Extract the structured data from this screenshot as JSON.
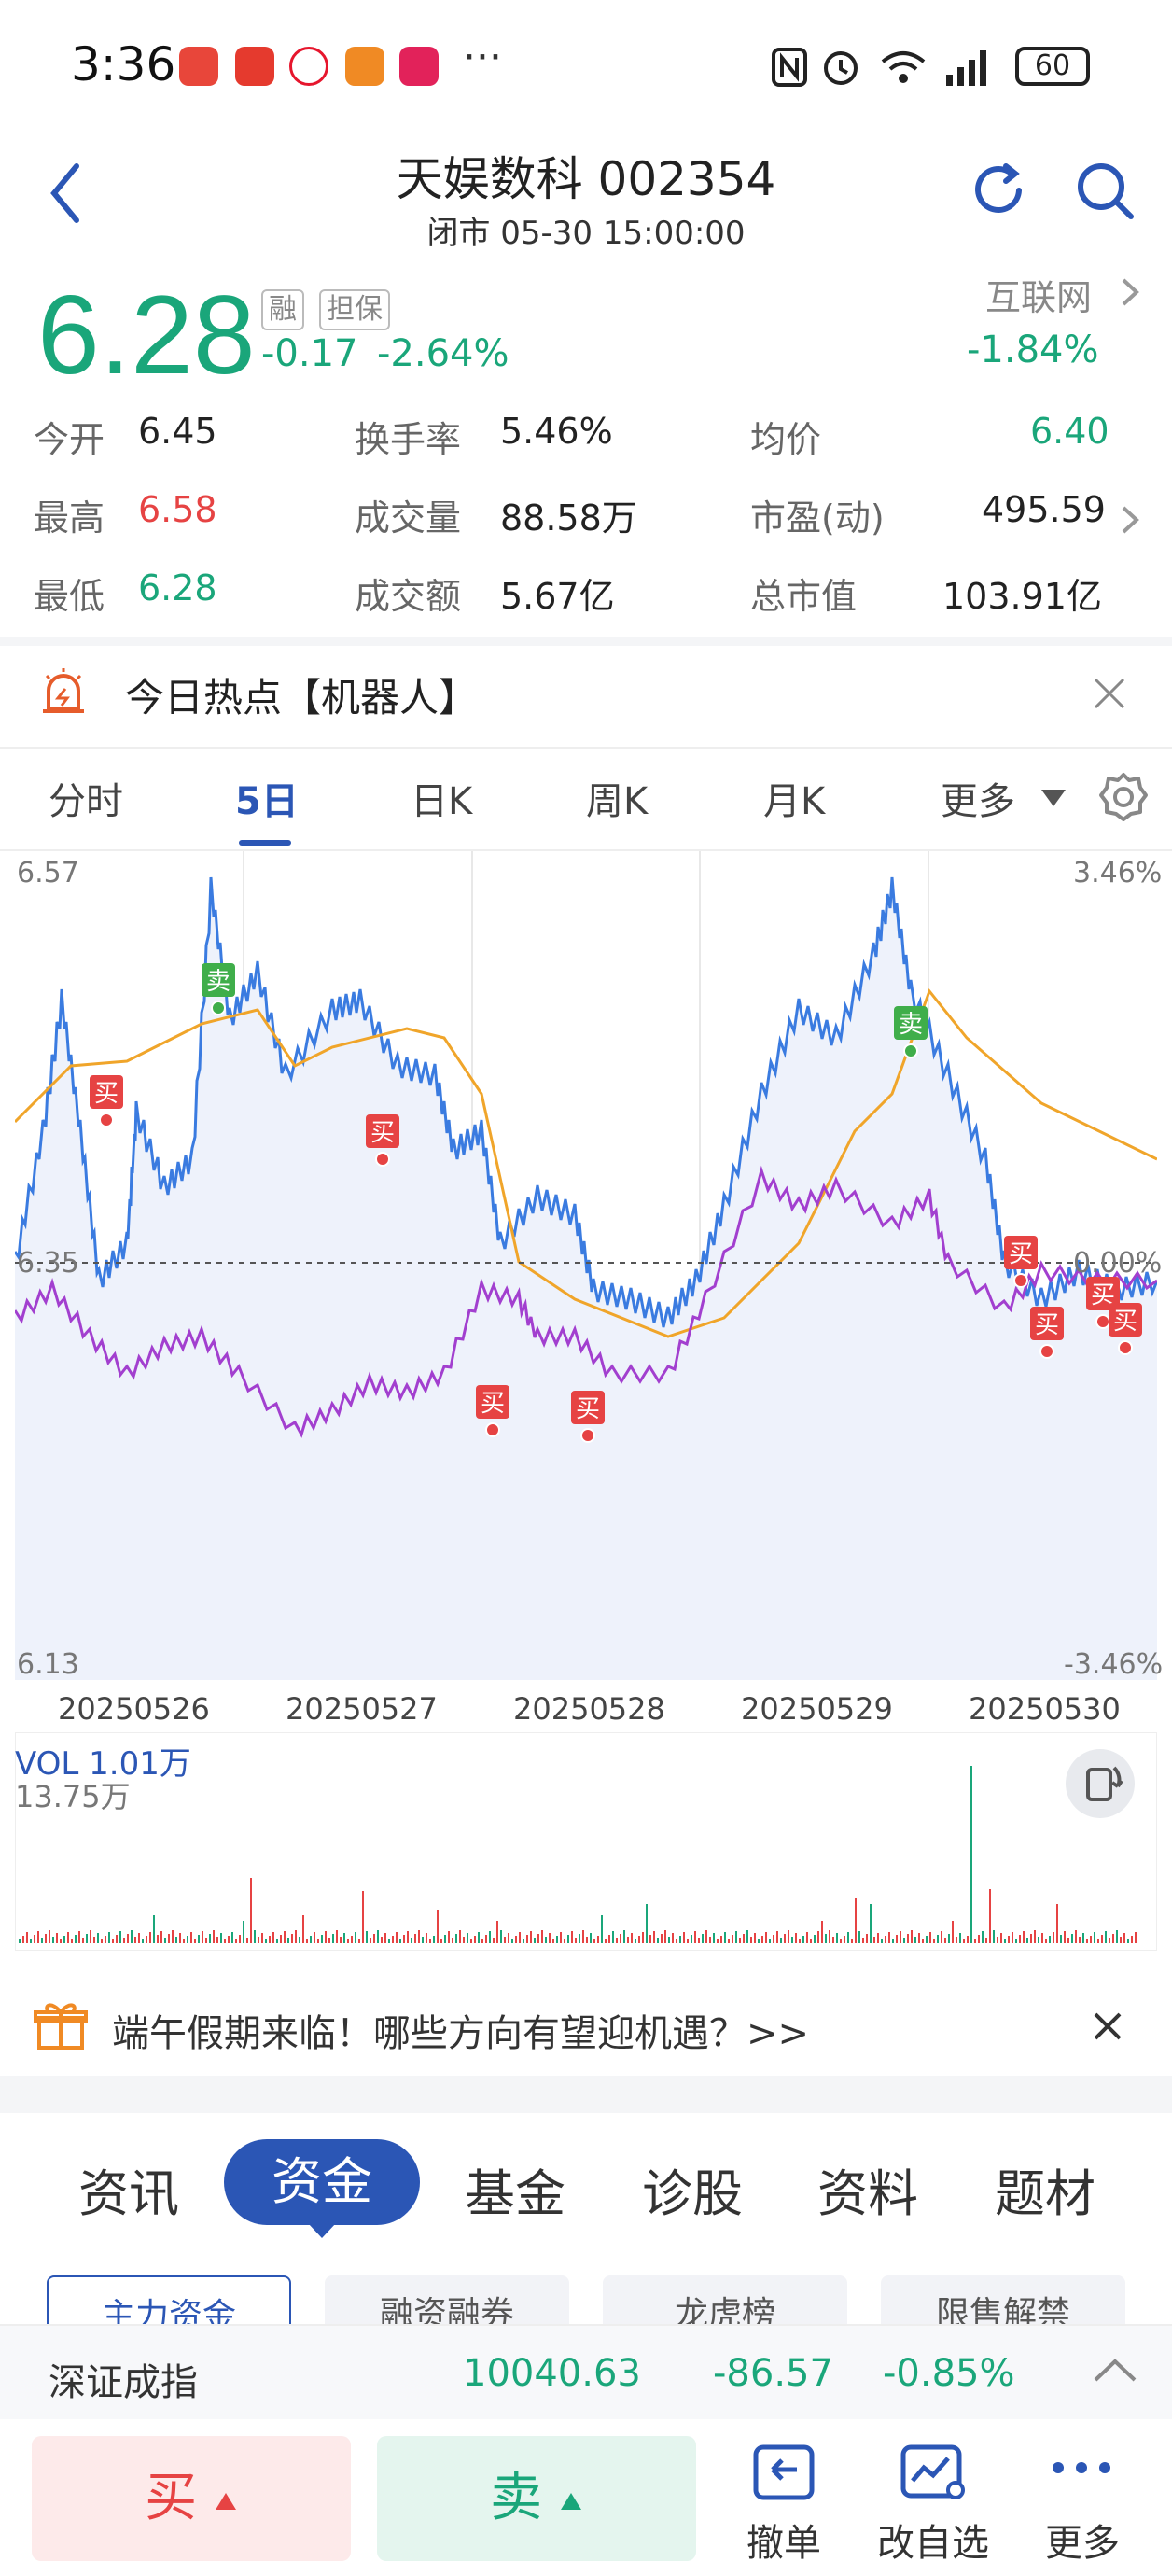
{
  "status": {
    "time": "3:36",
    "dots": "···",
    "battery": "60",
    "signal": "6"
  },
  "header": {
    "title": "天娱数科 002354",
    "subtitle": "闭市 05-30 15:00:00"
  },
  "quote": {
    "price": "6.28",
    "tags": [
      "融",
      "担保"
    ],
    "change": "-0.17",
    "change_pct": "-2.64%",
    "sector_name": "互联网",
    "sector_pct": "-1.84%"
  },
  "stats": [
    {
      "label": "今开",
      "value": "6.45",
      "color": "dark"
    },
    {
      "label": "最高",
      "value": "6.58",
      "color": "red"
    },
    {
      "label": "最低",
      "value": "6.28",
      "color": "green"
    },
    {
      "label": "换手率",
      "value": "5.46%",
      "color": "dark"
    },
    {
      "label": "成交量",
      "value": "88.58万",
      "color": "dark"
    },
    {
      "label": "成交额",
      "value": "5.67亿",
      "color": "dark"
    },
    {
      "label": "均价",
      "value": "6.40",
      "color": "green"
    },
    {
      "label": "市盈(动)",
      "value": "495.59",
      "color": "dark"
    },
    {
      "label": "总市值",
      "value": "103.91亿",
      "color": "dark"
    }
  ],
  "hot": {
    "text": "今日热点【机器人】"
  },
  "chart_tabs": [
    "分时",
    "5日",
    "日K",
    "周K",
    "月K",
    "更多"
  ],
  "chart": {
    "y_top": "6.57",
    "y_bottom": "6.13",
    "y_mid": "6.35",
    "pct_top": "3.46%",
    "pct_mid": "0.00%",
    "pct_bottom": "-3.46%",
    "dates": [
      "20250526",
      "20250527",
      "20250528",
      "20250529",
      "20250530"
    ],
    "buy_label": "买",
    "sell_label": "卖"
  },
  "chart_data": {
    "type": "line",
    "x": [
      "20250526",
      "20250527",
      "20250528",
      "20250529",
      "20250530"
    ],
    "ylim": [
      6.13,
      6.57
    ],
    "reference": 6.35,
    "series": []
  },
  "volume": {
    "label": "VOL 1.01万",
    "max": "13.75万"
  },
  "promo": {
    "text": "端午假期来临！哪些方向有望迎机遇？>>"
  },
  "info_tabs": [
    "资讯",
    "资金",
    "基金",
    "诊股",
    "资料",
    "题材"
  ],
  "sub_tabs": [
    "主力资金",
    "融资融券",
    "龙虎榜",
    "限售解禁"
  ],
  "index_bar": {
    "name": "深证成指",
    "value": "10040.63",
    "change": "-86.57",
    "pct": "-0.85%"
  },
  "actions": {
    "buy": "买",
    "sell": "卖",
    "cancel": "撤单",
    "watch": "改自选",
    "more": "更多"
  },
  "colors": {
    "up": "#e64343",
    "down": "#1aa67a",
    "accent": "#2b56b5"
  }
}
